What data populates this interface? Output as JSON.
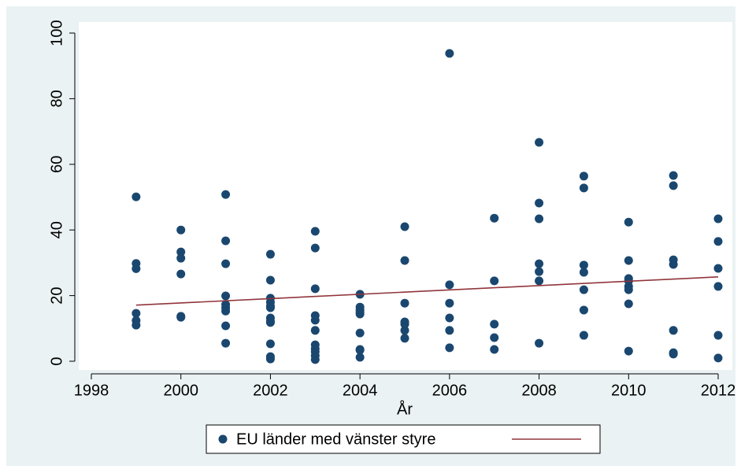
{
  "chart_data": {
    "type": "scatter",
    "x_label": "År",
    "xlim": [
      1998,
      2012
    ],
    "xticks": [
      1998,
      2000,
      2002,
      2004,
      2006,
      2008,
      2010,
      2012
    ],
    "ylim": [
      0,
      100
    ],
    "yticks": [
      0,
      20,
      40,
      60,
      80,
      100
    ],
    "legend": "bottom",
    "series": [
      {
        "name": "EU länder med vänster styre",
        "color": "#1a476f",
        "type": "scatter",
        "x": [
          1999,
          1999,
          1999,
          1999,
          1999,
          1999,
          2000,
          2000,
          2000,
          2000,
          2000,
          2000,
          2001,
          2001,
          2001,
          2001,
          2001,
          2001,
          2001,
          2001,
          2001,
          2002,
          2002,
          2002,
          2002,
          2002,
          2002,
          2002,
          2002,
          2002,
          2002,
          2002,
          2002,
          2003,
          2003,
          2003,
          2003,
          2003,
          2003,
          2003,
          2003,
          2003,
          2003,
          2003,
          2004,
          2004,
          2004,
          2004,
          2004,
          2004,
          2004,
          2004,
          2004,
          2005,
          2005,
          2005,
          2005,
          2005,
          2005,
          2005,
          2006,
          2006,
          2006,
          2006,
          2006,
          2006,
          2007,
          2007,
          2007,
          2007,
          2007,
          2008,
          2008,
          2008,
          2008,
          2008,
          2008,
          2008,
          2009,
          2009,
          2009,
          2009,
          2009,
          2009,
          2009,
          2010,
          2010,
          2010,
          2010,
          2010,
          2010,
          2010,
          2010,
          2011,
          2011,
          2011,
          2011,
          2011,
          2011,
          2011,
          2012,
          2012,
          2012,
          2012,
          2012,
          2012
        ],
        "values": [
          50.1,
          29.8,
          28.2,
          14.6,
          12.4,
          11.0,
          40.0,
          33.3,
          31.4,
          26.6,
          13.7,
          13.4,
          50.8,
          36.7,
          29.7,
          19.9,
          17.3,
          16.3,
          15.3,
          10.8,
          5.5,
          32.6,
          24.7,
          19.2,
          18.0,
          16.8,
          16.3,
          13.2,
          12.2,
          11.8,
          5.3,
          1.4,
          0.7,
          39.6,
          34.5,
          22.1,
          13.9,
          12.5,
          9.4,
          5.0,
          3.8,
          2.9,
          1.7,
          0.5,
          20.4,
          16.5,
          15.6,
          14.9,
          14.4,
          8.6,
          3.6,
          3.4,
          1.2,
          41.0,
          30.7,
          17.7,
          12.0,
          11.3,
          9.4,
          7.0,
          93.8,
          23.3,
          17.7,
          13.2,
          9.4,
          4.1,
          43.6,
          24.5,
          11.3,
          7.2,
          3.6,
          66.7,
          48.2,
          43.4,
          29.7,
          27.3,
          24.5,
          5.5,
          56.4,
          52.8,
          29.3,
          27.1,
          21.8,
          15.6,
          7.9,
          42.4,
          30.7,
          25.2,
          24.5,
          22.8,
          21.8,
          17.5,
          3.1,
          56.6,
          53.5,
          30.9,
          29.5,
          9.4,
          2.6,
          2.2,
          43.4,
          36.5,
          28.3,
          22.8,
          7.9,
          1.0
        ]
      },
      {
        "color": "#90353b",
        "type": "line",
        "x": [
          1999,
          2012
        ],
        "values": [
          17.1,
          25.7
        ]
      }
    ]
  }
}
